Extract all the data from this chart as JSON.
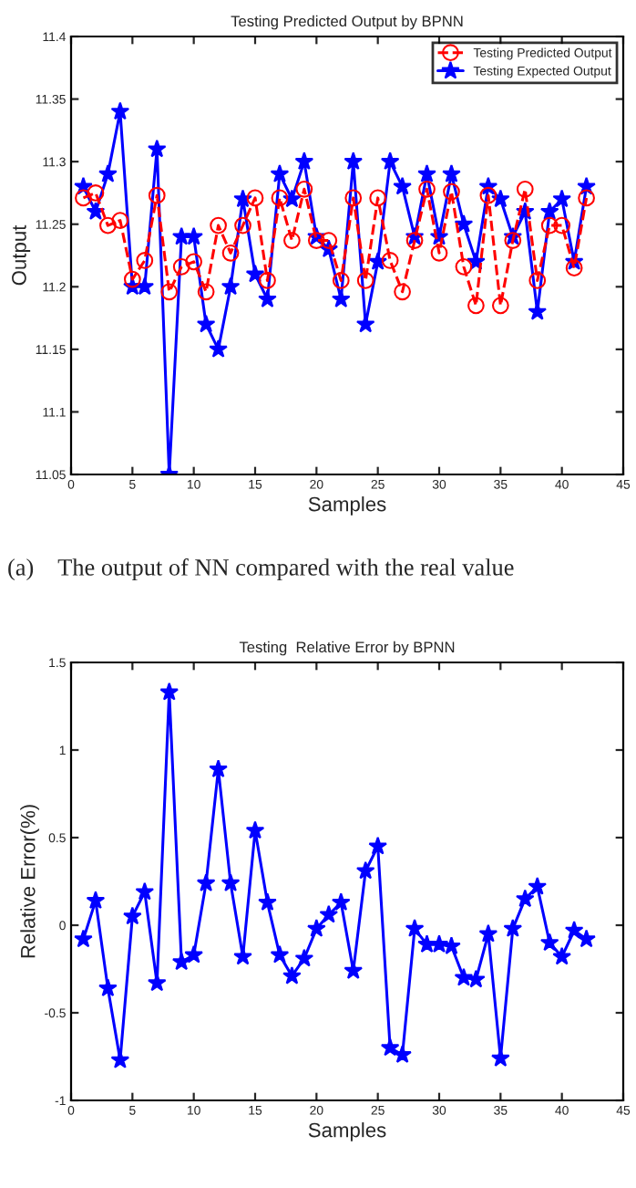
{
  "chart_data": [
    {
      "type": "line",
      "title": "Testing Predicted Output by BPNN",
      "xlabel": "Samples",
      "ylabel": "Output",
      "x": [
        1,
        2,
        3,
        4,
        5,
        6,
        7,
        8,
        9,
        10,
        11,
        12,
        13,
        14,
        15,
        16,
        17,
        18,
        19,
        20,
        21,
        22,
        23,
        24,
        25,
        26,
        27,
        28,
        29,
        30,
        31,
        32,
        33,
        34,
        35,
        36,
        37,
        38,
        39,
        40,
        41,
        42
      ],
      "series": [
        {
          "name": "Testing Predicted Output",
          "color": "#ff0000",
          "marker": "circle",
          "line_style": "dashed",
          "values": [
            11.271,
            11.275,
            11.249,
            11.253,
            11.206,
            11.221,
            11.273,
            11.196,
            11.216,
            11.22,
            11.196,
            11.249,
            11.227,
            11.249,
            11.271,
            11.205,
            11.271,
            11.237,
            11.278,
            11.237,
            11.237,
            11.205,
            11.271,
            11.205,
            11.271,
            11.221,
            11.196,
            11.237,
            11.278,
            11.227,
            11.276,
            11.216,
            11.185,
            11.273,
            11.185,
            11.237,
            11.278,
            11.205,
            11.249,
            11.249,
            11.215,
            11.271
          ]
        },
        {
          "name": "Testing Expected Output",
          "color": "#0000ff",
          "marker": "star",
          "line_style": "solid",
          "values": [
            11.28,
            11.26,
            11.29,
            11.34,
            11.2,
            11.2,
            11.31,
            11.05,
            11.24,
            11.24,
            11.17,
            11.15,
            11.2,
            11.27,
            11.21,
            11.19,
            11.29,
            11.27,
            11.3,
            11.24,
            11.23,
            11.19,
            11.3,
            11.17,
            11.22,
            11.3,
            11.28,
            11.24,
            11.29,
            11.24,
            11.29,
            11.25,
            11.22,
            11.28,
            11.27,
            11.24,
            11.26,
            11.18,
            11.26,
            11.27,
            11.22,
            11.28
          ]
        }
      ],
      "xlim": [
        0,
        45
      ],
      "xticks": [
        0,
        5,
        10,
        15,
        20,
        25,
        30,
        35,
        40,
        45
      ],
      "ylim": [
        11.05,
        11.4
      ],
      "yticks": [
        11.05,
        11.1,
        11.15,
        11.2,
        11.25,
        11.3,
        11.35,
        11.4
      ],
      "legend": "top right",
      "grid": false,
      "annotations": [
        "(a)    The output of NN compared with the real value"
      ]
    },
    {
      "type": "line",
      "title": "Testing  Relative Error by BPNN",
      "xlabel": "Samples",
      "ylabel": "Relative Error(%)",
      "x": [
        1,
        2,
        3,
        4,
        5,
        6,
        7,
        8,
        9,
        10,
        11,
        12,
        13,
        14,
        15,
        16,
        17,
        18,
        19,
        20,
        21,
        22,
        23,
        24,
        25,
        26,
        27,
        28,
        29,
        30,
        31,
        32,
        33,
        34,
        35,
        36,
        37,
        38,
        39,
        40,
        41,
        42
      ],
      "series": [
        {
          "color": "#0000ff",
          "marker": "star",
          "line_style": "solid",
          "values": [
            -0.08,
            0.14,
            -0.36,
            -0.77,
            0.05,
            0.19,
            -0.33,
            1.33,
            -0.21,
            -0.17,
            0.24,
            0.89,
            0.24,
            -0.18,
            0.54,
            0.13,
            -0.17,
            -0.29,
            -0.19,
            -0.02,
            0.06,
            0.13,
            -0.26,
            0.31,
            0.45,
            -0.7,
            -0.74,
            -0.02,
            -0.11,
            -0.11,
            -0.12,
            -0.3,
            -0.31,
            -0.05,
            -0.76,
            -0.02,
            0.15,
            0.22,
            -0.1,
            -0.18,
            -0.03,
            -0.08
          ]
        }
      ],
      "xlim": [
        0,
        45
      ],
      "xticks": [
        0,
        5,
        10,
        15,
        20,
        25,
        30,
        35,
        40,
        45
      ],
      "ylim": [
        -1,
        1.5
      ],
      "yticks": [
        -1,
        -0.5,
        0,
        0.5,
        1,
        1.5
      ],
      "legend": false,
      "grid": false
    }
  ]
}
